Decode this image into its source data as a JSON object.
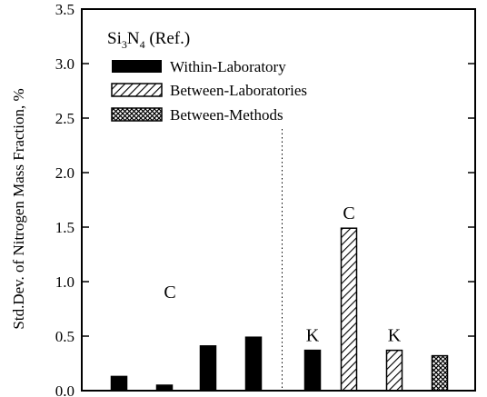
{
  "chart_data": {
    "type": "bar",
    "title": "Si₃N₄ (Ref.)",
    "ylabel": "Std.Dev. of Nitrogen Mass Fraction, %",
    "xlabel": "",
    "ylim": [
      0,
      3.5
    ],
    "yticks": [
      "0.0",
      "0.5",
      "1.0",
      "1.5",
      "2.0",
      "2.5",
      "3.0",
      "3.5"
    ],
    "legend_position": "top-left",
    "divider": "dotted vertical line after the fourth bar",
    "series": [
      {
        "name": "Within-Laboratory",
        "pattern": "solid"
      },
      {
        "name": "Between-Laboratories",
        "pattern": "diagonal-hatch"
      },
      {
        "name": "Between-Methods",
        "pattern": "cross-hatch"
      }
    ],
    "bars": [
      {
        "series": "Within-Laboratory",
        "value": 0.13,
        "label": ""
      },
      {
        "series": "Within-Laboratory",
        "value": 0.05,
        "label": ""
      },
      {
        "series": "Within-Laboratory",
        "value": 0.41,
        "label": ""
      },
      {
        "series": "Within-Laboratory",
        "value": 0.49,
        "label": ""
      },
      {
        "series": "Within-Laboratory",
        "value": 0.37,
        "label": "K"
      },
      {
        "series": "Between-Laboratories",
        "value": 1.49,
        "label": "C"
      },
      {
        "series": "Between-Laboratories",
        "value": 0.37,
        "label": "K"
      },
      {
        "series": "Between-Methods",
        "value": 0.32,
        "label": ""
      }
    ],
    "annotations": [
      {
        "text": "C",
        "x_index": 2,
        "y": 0.85
      }
    ]
  }
}
